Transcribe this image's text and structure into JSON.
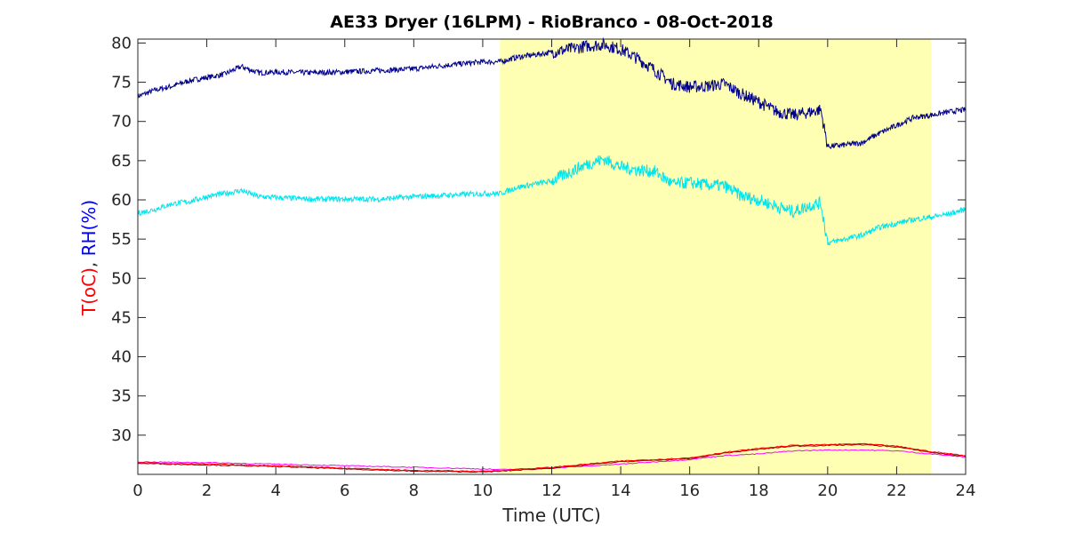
{
  "chart_data": {
    "type": "line",
    "title": "AE33 Dryer (16LPM)  - RioBranco - 08-Oct-2018",
    "xlabel": "Time (UTC)",
    "ylabel_parts": {
      "t": "T(oC)",
      "sep": ", ",
      "rh": "RH(%)"
    },
    "xlim": [
      0,
      24
    ],
    "ylim": [
      25,
      80.5
    ],
    "xticks": [
      0,
      2,
      4,
      6,
      8,
      10,
      12,
      14,
      16,
      18,
      20,
      22,
      24
    ],
    "yticks": [
      30,
      35,
      40,
      45,
      50,
      55,
      60,
      65,
      70,
      75,
      80
    ],
    "grid": false,
    "shaded_region": {
      "x0": 10.5,
      "x1": 23.0,
      "color": "#ffffb3"
    },
    "series": [
      {
        "color": "#00008b",
        "x": [
          0,
          0.5,
          1,
          1.5,
          2,
          2.5,
          3,
          3.5,
          4,
          5,
          6,
          7,
          8,
          9,
          10,
          10.5,
          11,
          12,
          12.5,
          13,
          13.5,
          14,
          14.5,
          15,
          15.5,
          16,
          16.5,
          17,
          17.5,
          18,
          18.5,
          19,
          19.5,
          19.8,
          20,
          20.5,
          21,
          21.5,
          22,
          22.5,
          23,
          23.5,
          24
        ],
        "y": [
          73.2,
          74,
          74.5,
          75.2,
          75.6,
          76,
          77,
          76.2,
          76.3,
          76.2,
          76.3,
          76.5,
          76.7,
          77.2,
          77.6,
          77.6,
          78.2,
          78.8,
          79.2,
          79.6,
          79.8,
          79.2,
          78,
          76.5,
          74.8,
          74.4,
          74.5,
          74.8,
          73.5,
          72.5,
          71.3,
          70.8,
          71.2,
          71.5,
          66.8,
          67,
          67.3,
          68.5,
          69.5,
          70.5,
          70.8,
          71.2,
          71.5
        ]
      },
      {
        "color": "#00e5ee",
        "x": [
          0,
          0.5,
          1,
          1.5,
          2,
          2.5,
          3,
          3.5,
          4,
          5,
          6,
          7,
          8,
          9,
          10,
          10.5,
          11,
          12,
          12.5,
          13,
          13.5,
          14,
          14.5,
          15,
          15.5,
          16,
          16.5,
          17,
          17.5,
          18,
          18.5,
          19,
          19.5,
          19.8,
          20,
          20.5,
          21,
          21.5,
          22,
          22.5,
          23,
          23.5,
          24
        ],
        "y": [
          58.3,
          58.8,
          59.5,
          59.8,
          60.4,
          60.8,
          61.2,
          60.4,
          60.3,
          60.1,
          60.1,
          60.1,
          60.4,
          60.6,
          60.8,
          60.8,
          61.6,
          62.4,
          63.5,
          64.5,
          65.2,
          64.2,
          63.8,
          63.6,
          62,
          62.2,
          61.9,
          61.8,
          60.5,
          60,
          59.2,
          58.5,
          59.3,
          59.6,
          54.5,
          55,
          55.5,
          56.5,
          57,
          57.5,
          57.8,
          58.2,
          58.8
        ]
      },
      {
        "color": "#ff00ff",
        "x": [
          0,
          2,
          4,
          6,
          8,
          10,
          10.5,
          12,
          14,
          16,
          17,
          18,
          19,
          20,
          21,
          22,
          23,
          24
        ],
        "y": [
          26.6,
          26.5,
          26.3,
          26.1,
          25.9,
          25.7,
          25.6,
          25.8,
          26.3,
          26.9,
          27.4,
          27.6,
          28,
          28.1,
          28.1,
          28,
          27.6,
          27.2
        ]
      },
      {
        "color": "#8b0000",
        "x": [
          0,
          2,
          4,
          6,
          8,
          10,
          10.5,
          12,
          14,
          16,
          17,
          18,
          19,
          20,
          21,
          22,
          23,
          24
        ],
        "y": [
          26.4,
          26.2,
          26,
          25.7,
          25.4,
          25.3,
          25.4,
          25.8,
          26.6,
          27,
          27.7,
          28.2,
          28.6,
          28.7,
          28.8,
          28.5,
          27.8,
          27.3
        ]
      },
      {
        "color": "#ff0000",
        "x": [
          0,
          2,
          4,
          6,
          8,
          10,
          10.5,
          12,
          14,
          16,
          17,
          18,
          19,
          20,
          21,
          22,
          23,
          24
        ],
        "y": [
          26.5,
          26.3,
          26.1,
          25.8,
          25.5,
          25.4,
          25.5,
          25.9,
          26.7,
          27.1,
          27.8,
          28.3,
          28.7,
          28.8,
          28.9,
          28.6,
          27.9,
          27.4
        ]
      }
    ]
  }
}
